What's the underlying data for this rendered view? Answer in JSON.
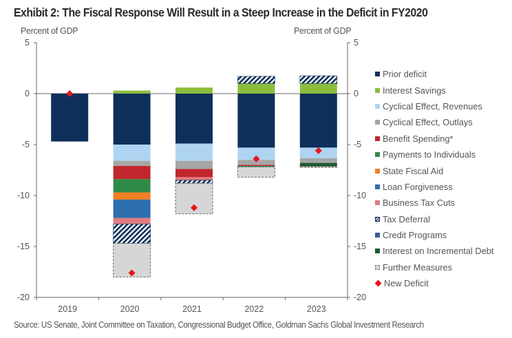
{
  "chart_data": {
    "type": "bar",
    "stacked": true,
    "title": "Exhibit 2: The Fiscal Response Will Result in a Steep Increase in the Deficit in FY2020",
    "ylabel_left": "Percent of GDP",
    "ylabel_right": "Percent of GDP",
    "xlabel": "",
    "ylim": [
      -20,
      5
    ],
    "yticks": [
      5,
      0,
      -5,
      -10,
      -15,
      -20
    ],
    "categories": [
      "2019",
      "2020",
      "2021",
      "2022",
      "2023"
    ],
    "legend_position": "right",
    "series": [
      {
        "name": "Prior deficit",
        "color": "#0d2f5a",
        "pattern": "solid",
        "values": [
          -4.7,
          -5.0,
          -4.9,
          -5.3,
          -5.3
        ]
      },
      {
        "name": "Interest Savings",
        "color": "#8cbd3f",
        "pattern": "solid",
        "values": [
          0,
          0.3,
          0.6,
          1.0,
          1.0
        ]
      },
      {
        "name": "Cyclical Effect, Revenues",
        "color": "#aed4f2",
        "pattern": "solid",
        "values": [
          0,
          -1.6,
          -1.7,
          -1.2,
          -1.05
        ]
      },
      {
        "name": "Cyclical Effect, Outlays",
        "color": "#a6a6a6",
        "pattern": "solid",
        "values": [
          0,
          -0.5,
          -0.8,
          -0.5,
          -0.45
        ]
      },
      {
        "name": "Benefit Spending*",
        "color": "#c0272d",
        "pattern": "solid",
        "values": [
          0,
          -1.3,
          -0.8,
          -0.1,
          0
        ]
      },
      {
        "name": "Payments to Individuals",
        "color": "#2e8b47",
        "pattern": "solid",
        "values": [
          0,
          -1.3,
          0,
          -0.1,
          0
        ]
      },
      {
        "name": "State Fiscal Aid",
        "color": "#f08124",
        "pattern": "solid",
        "values": [
          0,
          -0.7,
          0,
          0,
          0
        ]
      },
      {
        "name": "Loan Forgiveness",
        "color": "#2e6fad",
        "pattern": "solid",
        "values": [
          0,
          -1.8,
          0,
          0,
          0
        ]
      },
      {
        "name": "Business Tax Cuts",
        "color": "#e07b82",
        "pattern": "solid",
        "values": [
          0,
          -0.6,
          -0.3,
          0,
          0
        ]
      },
      {
        "name": "Tax Deferral",
        "color": "#0d2f5a",
        "pattern": "hatch",
        "values": [
          0,
          -1.9,
          -0.3,
          0.7,
          0.75
        ]
      },
      {
        "name": "Credit Programs",
        "color": "#3d5f8f",
        "pattern": "solid",
        "values": [
          0,
          0,
          0,
          0,
          0
        ]
      },
      {
        "name": "Interest on Incremental Debt",
        "color": "#1f5a2e",
        "pattern": "solid",
        "values": [
          0,
          0,
          0,
          0,
          -0.35
        ]
      },
      {
        "name": "Further Measures",
        "color": "#d6d6d6",
        "pattern": "dashed",
        "values": [
          0,
          -3.3,
          -3.0,
          -1.0,
          -0.1
        ]
      }
    ],
    "markers": {
      "name": "New Deficit",
      "color": "#e8141c",
      "shape": "diamond",
      "values": [
        0.0,
        -17.6,
        -11.2,
        -6.4,
        -5.6
      ]
    }
  },
  "source": "Source: US Senate, Joint Committee on Taxation, Congressional Budget Office, Goldman Sachs Global Investment Research"
}
